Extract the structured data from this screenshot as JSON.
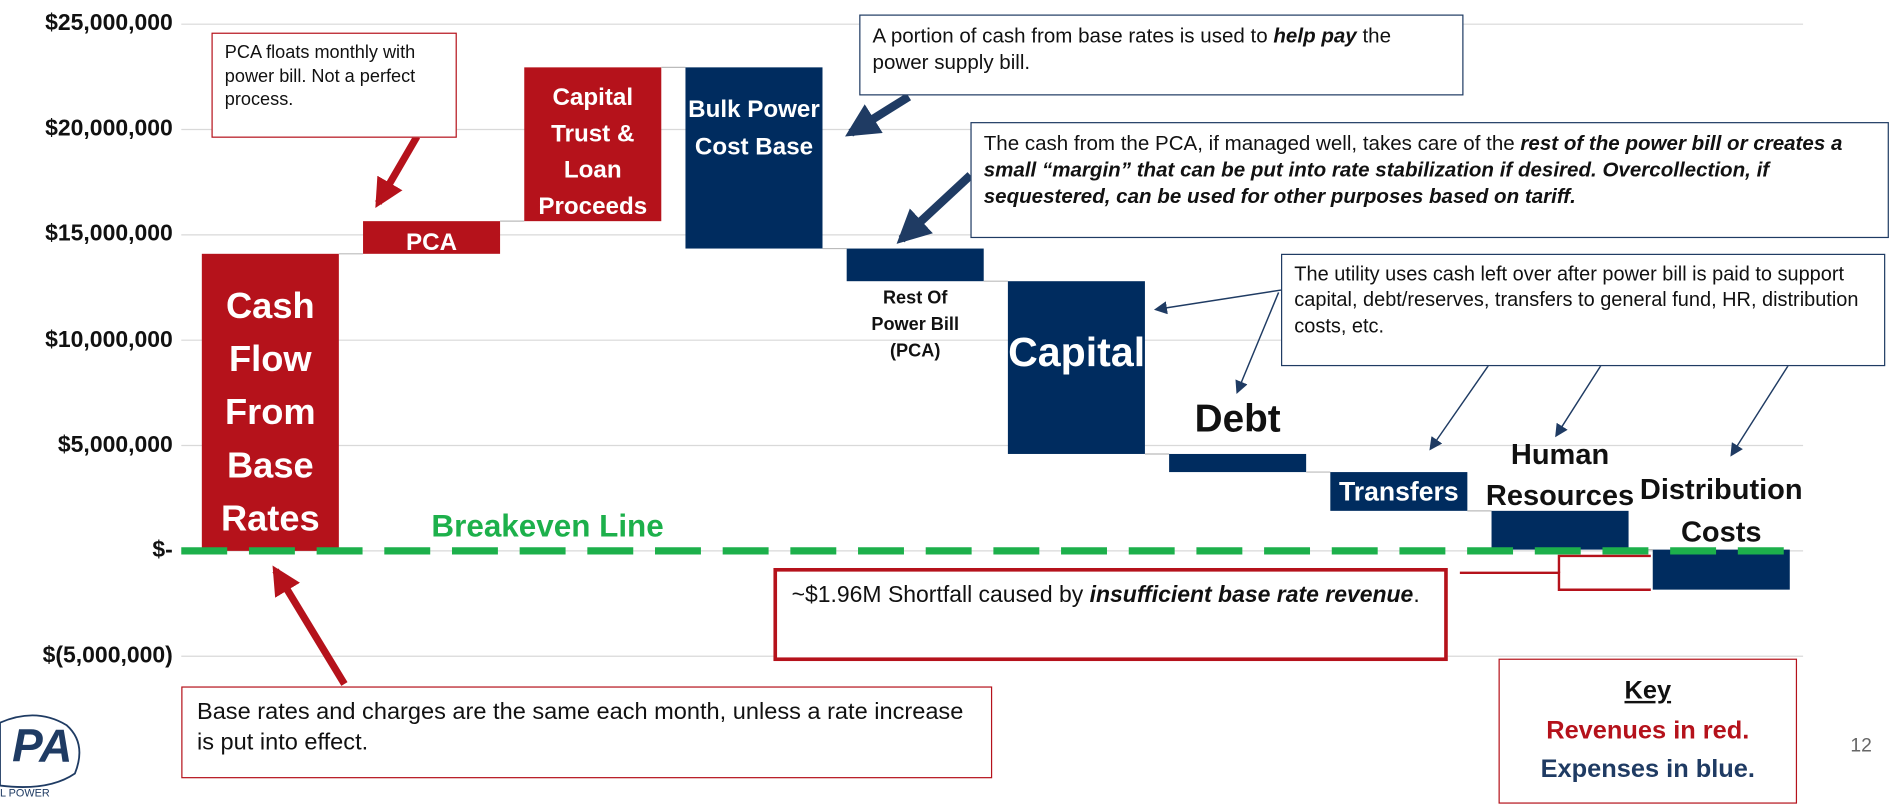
{
  "chart_data": {
    "type": "waterfall",
    "categories": [
      "Cash Flow From Base Rates",
      "PCA",
      "Capital Trust & Loan Proceeds",
      "Bulk Power Cost Base",
      "Rest Of Power Bill (PCA)",
      "Capital",
      "Debt",
      "Transfers",
      "Human Resources",
      "Distribution Costs"
    ],
    "values": [
      14100000,
      1550000,
      7300000,
      -8600000,
      -1550000,
      -8200000,
      -860000,
      -1840000,
      -1840000,
      -1900000
    ],
    "color_positive": "#b5121b",
    "color_negative": "#002c5f",
    "ylim": [
      -5000000,
      25000000
    ],
    "yticks": [
      {
        "value": -5000000,
        "label": "$(5,000,000)"
      },
      {
        "value": 0,
        "label": "$-"
      },
      {
        "value": 5000000,
        "label": "$5,000,000"
      },
      {
        "value": 10000000,
        "label": "$10,000,000"
      },
      {
        "value": 15000000,
        "label": "$15,000,000"
      },
      {
        "value": 20000000,
        "label": "$20,000,000"
      },
      {
        "value": 25000000,
        "label": "$25,000,000"
      }
    ],
    "grid": true,
    "breakeven": {
      "label": "Breakeven Line",
      "value": 0,
      "color": "#1db04b"
    },
    "annotations": [
      "PCA floats monthly with power bill. Not a perfect process.",
      [
        "A portion of cash from base rates is used to ",
        "help pay",
        " the power supply bill."
      ],
      [
        "The cash from the PCA, if managed well, takes care of the ",
        "rest of the power bill or creates a small “margin” that can be put into rate stabilization if desired. Overcollection, if sequestered, can be used for other purposes based on tariff."
      ],
      "The utility uses cash left over after power bill is paid to support capital, debt/reserves, transfers to general fund, HR, distribution costs, etc.",
      [
        "~$1.96M Shortfall caused by ",
        "insufficient base rate revenue",
        "."
      ],
      "Base rates and charges are the same each month, unless a rate increase is put into effect."
    ],
    "key": {
      "title": "Key",
      "revenues": "Revenues in red.",
      "expenses": "Expenses in blue."
    },
    "page_number": "12",
    "logo_text": "PA",
    "logo_subtext": "L POWER"
  }
}
